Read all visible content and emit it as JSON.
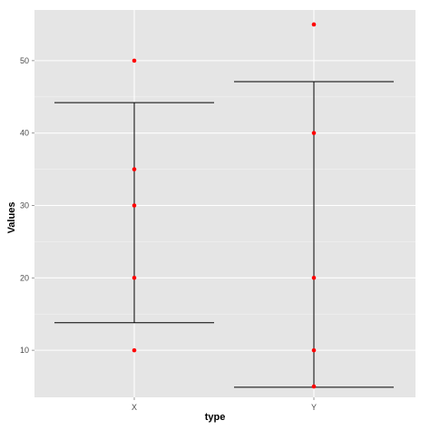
{
  "chart_data": {
    "type": "scatter",
    "xlabel": "type",
    "ylabel": "Values",
    "categories": [
      "X",
      "Y"
    ],
    "ylim": [
      3.5,
      57
    ],
    "yticks": [
      10,
      20,
      30,
      40,
      50
    ],
    "grid": true,
    "colors": {
      "panel": "#e5e5e5",
      "grid_major": "#ffffff",
      "grid_minor": "#f2f2f2",
      "points": "#ff0000",
      "errorbar": "#000000"
    },
    "points": [
      {
        "x": "X",
        "y": 10
      },
      {
        "x": "X",
        "y": 20
      },
      {
        "x": "X",
        "y": 30
      },
      {
        "x": "X",
        "y": 35
      },
      {
        "x": "X",
        "y": 50
      },
      {
        "x": "Y",
        "y": 5
      },
      {
        "x": "Y",
        "y": 10
      },
      {
        "x": "Y",
        "y": 20
      },
      {
        "x": "Y",
        "y": 40
      },
      {
        "x": "Y",
        "y": 55
      }
    ],
    "errorbars": [
      {
        "x": "X",
        "ymin": 13.8,
        "ymax": 44.2
      },
      {
        "x": "Y",
        "ymin": 4.9,
        "ymax": 47.1
      }
    ]
  }
}
